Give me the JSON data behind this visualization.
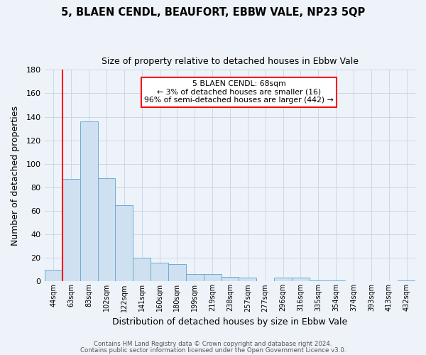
{
  "title": "5, BLAEN CENDL, BEAUFORT, EBBW VALE, NP23 5QP",
  "subtitle": "Size of property relative to detached houses in Ebbw Vale",
  "xlabel": "Distribution of detached houses by size in Ebbw Vale",
  "ylabel": "Number of detached properties",
  "bar_labels": [
    "44sqm",
    "63sqm",
    "83sqm",
    "102sqm",
    "122sqm",
    "141sqm",
    "160sqm",
    "180sqm",
    "199sqm",
    "219sqm",
    "238sqm",
    "257sqm",
    "277sqm",
    "296sqm",
    "316sqm",
    "335sqm",
    "354sqm",
    "374sqm",
    "393sqm",
    "413sqm",
    "432sqm"
  ],
  "bar_values": [
    10,
    87,
    136,
    88,
    65,
    20,
    16,
    15,
    6,
    6,
    4,
    3,
    0,
    3,
    3,
    1,
    1,
    0,
    0,
    0,
    1
  ],
  "bar_color": "#cfe0f0",
  "bar_edge_color": "#6aaed6",
  "red_line_bar_index": 1,
  "ylim": [
    0,
    180
  ],
  "yticks": [
    0,
    20,
    40,
    60,
    80,
    100,
    120,
    140,
    160,
    180
  ],
  "annotation_line1": "5 BLAEN CENDL: 68sqm",
  "annotation_line2": "← 3% of detached houses are smaller (16)",
  "annotation_line3": "96% of semi-detached houses are larger (442) →",
  "footer_line1": "Contains HM Land Registry data © Crown copyright and database right 2024.",
  "footer_line2": "Contains public sector information licensed under the Open Government Licence v3.0.",
  "grid_color": "#c8d8e8",
  "background_color": "#eef3fa",
  "plot_bg_color": "#eef3fa"
}
